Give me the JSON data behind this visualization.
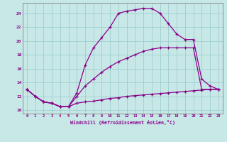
{
  "xlabel": "Windchill (Refroidissement éolien,°C)",
  "bg_color": "#c8e8e8",
  "grid_color": "#9ecece",
  "line_color": "#880088",
  "xlim_min": -0.5,
  "xlim_max": 23.5,
  "ylim_min": 9.5,
  "ylim_max": 25.5,
  "xticks": [
    0,
    1,
    2,
    3,
    4,
    5,
    6,
    7,
    8,
    9,
    10,
    11,
    12,
    13,
    14,
    15,
    16,
    17,
    18,
    19,
    20,
    21,
    22,
    23
  ],
  "yticks": [
    10,
    12,
    14,
    16,
    18,
    20,
    22,
    24
  ],
  "line1_x": [
    0,
    1,
    2,
    3,
    4,
    5,
    6,
    7,
    8,
    9,
    10,
    11,
    12,
    13,
    14,
    15,
    16,
    17,
    18,
    19,
    20,
    21,
    22,
    23
  ],
  "line1_y": [
    13,
    12,
    11.2,
    11.0,
    10.5,
    10.5,
    11.0,
    11.2,
    11.3,
    11.5,
    11.7,
    11.8,
    12.0,
    12.1,
    12.2,
    12.3,
    12.4,
    12.5,
    12.6,
    12.7,
    12.8,
    12.9,
    13.0,
    13.0
  ],
  "line2_x": [
    0,
    1,
    2,
    3,
    4,
    5,
    6,
    7,
    8,
    9,
    10,
    11,
    12,
    13,
    14,
    15,
    16,
    17,
    18,
    19,
    20,
    21,
    22,
    23
  ],
  "line2_y": [
    13,
    12,
    11.2,
    11.0,
    10.5,
    10.5,
    12.5,
    16.5,
    19.0,
    20.5,
    22.0,
    24.0,
    24.3,
    24.5,
    24.7,
    24.7,
    24.0,
    22.5,
    21.0,
    20.2,
    20.2,
    14.5,
    13.5,
    13.0
  ],
  "line3_x": [
    0,
    1,
    2,
    3,
    4,
    5,
    6,
    7,
    8,
    9,
    10,
    11,
    12,
    13,
    14,
    15,
    16,
    17,
    18,
    19,
    20,
    21,
    22,
    23
  ],
  "line3_y": [
    13,
    12,
    11.2,
    11.0,
    10.5,
    10.5,
    12.0,
    13.5,
    14.5,
    15.5,
    16.3,
    17.0,
    17.5,
    18.0,
    18.5,
    18.8,
    19.0,
    19.0,
    19.0,
    19.0,
    19.0,
    13.0,
    13.0,
    13.0
  ]
}
